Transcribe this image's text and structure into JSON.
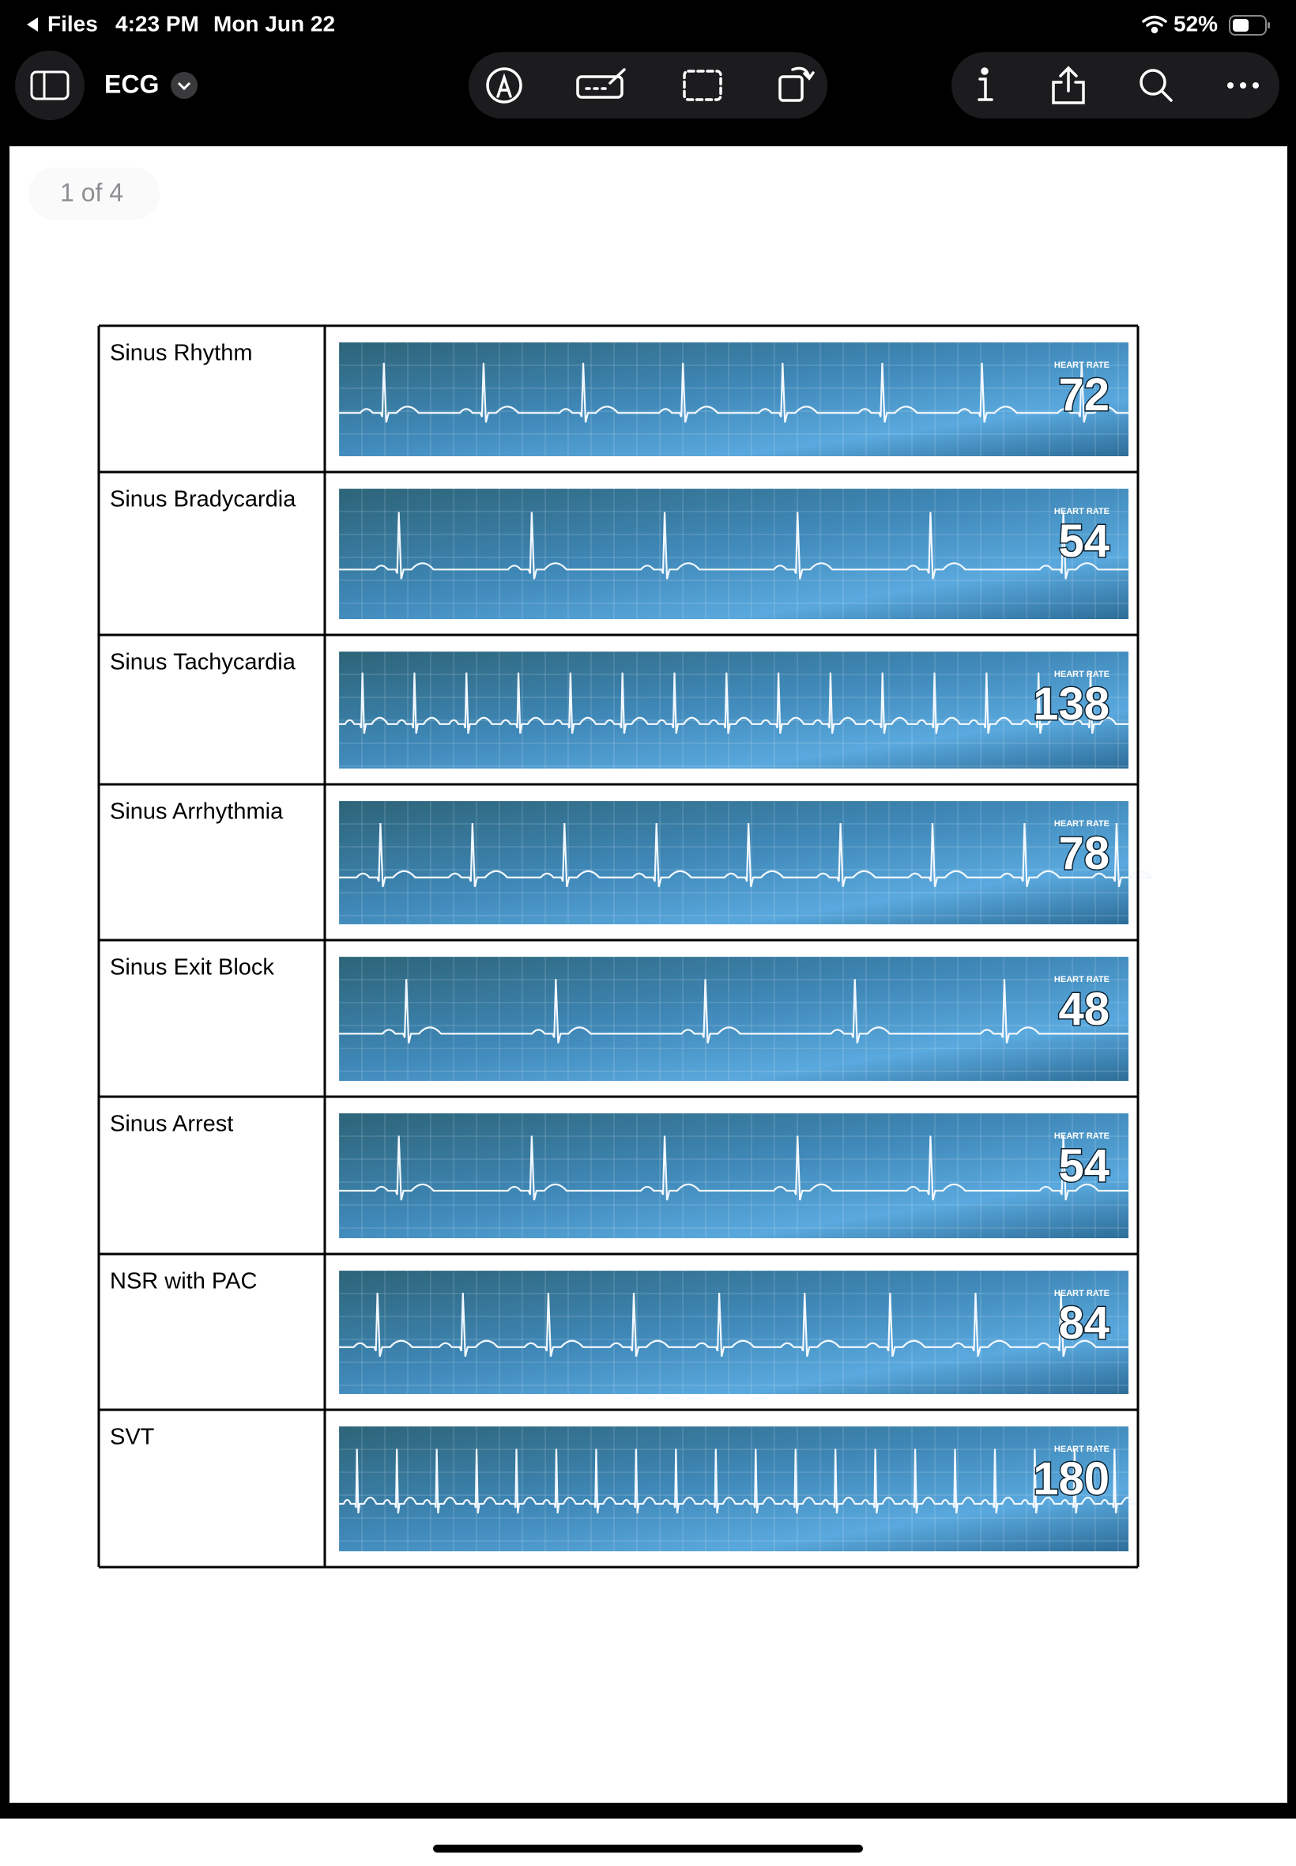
{
  "status_bar": {
    "back": "Files",
    "time": "4:23 PM",
    "date": "Mon Jun 22",
    "battery": "52%"
  },
  "toolbar": {
    "title": "ECG"
  },
  "page_indicator": "1 of 4",
  "table": {
    "rows": [
      {
        "rhythm": "Sinus Rhythm",
        "heart_rate_label": "HEART RATE",
        "heart_rate": 72
      },
      {
        "rhythm": "Sinus Bradycardia",
        "heart_rate_label": "HEART RATE",
        "heart_rate": 54
      },
      {
        "rhythm": "Sinus Tachycardia",
        "heart_rate_label": "HEART RATE",
        "heart_rate": 138
      },
      {
        "rhythm": "Sinus Arrhythmia",
        "heart_rate_label": "HEART RATE",
        "heart_rate": 78
      },
      {
        "rhythm": "Sinus Exit Block",
        "heart_rate_label": "HEART RATE",
        "heart_rate": 48
      },
      {
        "rhythm": "Sinus Arrest",
        "heart_rate_label": "HEART RATE",
        "heart_rate": 54
      },
      {
        "rhythm": "NSR with PAC",
        "heart_rate_label": "HEART RATE",
        "heart_rate": 84
      },
      {
        "rhythm": "SVT",
        "heart_rate_label": "HEART RATE",
        "heart_rate": 180
      }
    ]
  }
}
